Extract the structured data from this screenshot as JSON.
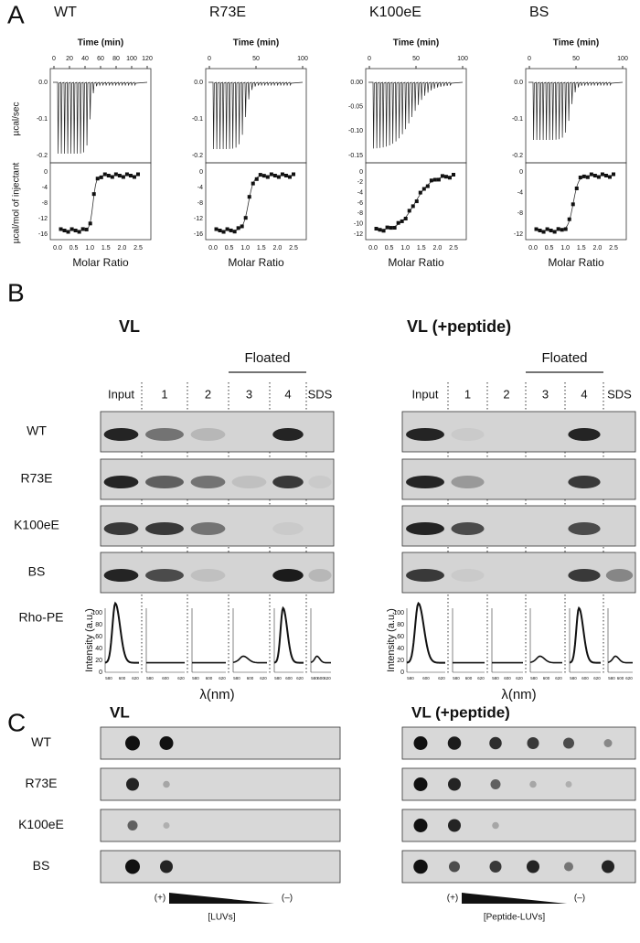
{
  "panelA": {
    "label": "A",
    "top_ylabel": "µcal/sec",
    "bottom_ylabel": "µcal/mol of injectant",
    "x_label": "Molar Ratio",
    "time_label": "Time (min)",
    "molar_ticks": [
      "0.0",
      "0.5",
      "1.0",
      "1.5",
      "2.0",
      "2.5"
    ],
    "constructs": [
      {
        "name": "WT",
        "time_ticks": [
          "0",
          "20",
          "40",
          "60",
          "80",
          "100",
          "120"
        ],
        "top_yticks": [
          "0.0",
          "-0.1",
          "-0.2"
        ],
        "bottom_yticks": [
          "0",
          "-4",
          "-8",
          "-12",
          "-16"
        ]
      },
      {
        "name": "R73E",
        "time_ticks": [
          "0",
          "50",
          "100"
        ],
        "top_yticks": [
          "0.0",
          "-0.1",
          "-0.2"
        ],
        "bottom_yticks": [
          "0",
          "-4",
          "-8",
          "-12",
          "-16"
        ]
      },
      {
        "name": "K100eE",
        "time_ticks": [
          "0",
          "50",
          "100"
        ],
        "top_yticks": [
          "0.00",
          "-0.05",
          "-0.10",
          "-0.15"
        ],
        "bottom_yticks": [
          "0",
          "-2",
          "-4",
          "-6",
          "-8",
          "-10",
          "-12"
        ]
      },
      {
        "name": "BS",
        "time_ticks": [
          "0",
          "50",
          "100"
        ],
        "top_yticks": [
          "0.0",
          "-0.1",
          "-0.2"
        ],
        "bottom_yticks": [
          "0",
          "-4",
          "-8",
          "-12"
        ]
      }
    ]
  },
  "panelB": {
    "label": "B",
    "floated": "Floated",
    "lanes": [
      "Input",
      "1",
      "2",
      "3",
      "4",
      "SDS"
    ],
    "blots": [
      "VL",
      "VL (+peptide)"
    ],
    "rows": [
      "WT",
      "R73E",
      "K100eE",
      "BS"
    ],
    "trace_label": "Rho-PE",
    "intensity_label": "Intensity (a.u.)",
    "intensity_ticks": [
      "0",
      "20",
      "40",
      "60",
      "80",
      "100"
    ],
    "wavelength_ticks": [
      "580",
      "600",
      "620"
    ],
    "wavelength_label": "λ(nm)"
  },
  "panelC": {
    "label": "C",
    "blots": [
      "VL",
      "VL (+peptide)"
    ],
    "rows": [
      "WT",
      "R73E",
      "K100eE",
      "BS"
    ],
    "plus": "(+)",
    "minus": "(–)",
    "gradient_labels": [
      "[LUVs]",
      "[Peptide-LUVs]"
    ]
  }
}
